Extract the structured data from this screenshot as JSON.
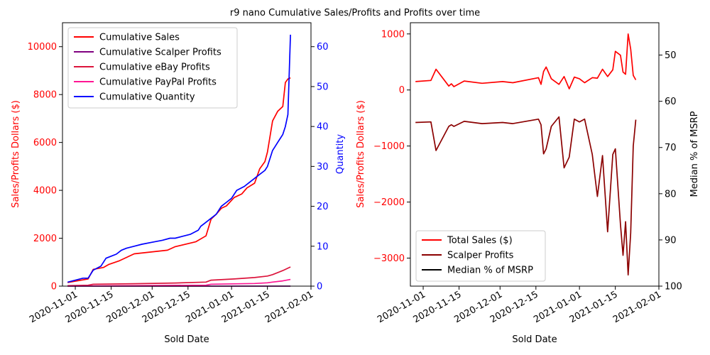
{
  "title": "r9 nano Cumulative Sales/Profits and Profits over time",
  "colors": {
    "sales": "#ff0000",
    "scalper": "#800080",
    "ebay": "#dc143c",
    "paypal": "#ff1493",
    "quantity": "#0000ff",
    "total_sales": "#ff0000",
    "scalper_profits": "#8b0000",
    "median_msrp": "#000000"
  },
  "chart_data": [
    {
      "type": "line",
      "xlabel": "Sold Date",
      "ylabel": "Sales/Profits Dollars ($)",
      "y2label": "Quantity",
      "x_ticks": [
        "2020-11-01",
        "2020-11-15",
        "2020-12-01",
        "2020-12-15",
        "2021-01-01",
        "2021-01-15",
        "2021-02-01"
      ],
      "xlim": [
        "2020-10-27",
        "2021-02-01"
      ],
      "ylim": [
        0,
        11000
      ],
      "y_ticks": [
        0,
        2000,
        4000,
        6000,
        8000,
        10000
      ],
      "y2lim": [
        0,
        66
      ],
      "y2_ticks": [
        0,
        10,
        20,
        30,
        40,
        50,
        60
      ],
      "legend_position": "top-left",
      "series": [
        {
          "name": "Cumulative Sales",
          "axis": "left",
          "color_key": "sales",
          "x": [
            "2020-10-29",
            "2020-11-06",
            "2020-11-08",
            "2020-11-12",
            "2020-11-14",
            "2020-11-18",
            "2020-11-24",
            "2020-12-07",
            "2020-12-10",
            "2020-12-18",
            "2020-12-22",
            "2020-12-24",
            "2020-12-26",
            "2020-12-28",
            "2020-12-30",
            "2021-01-02",
            "2021-01-05",
            "2021-01-07",
            "2021-01-10",
            "2021-01-12",
            "2021-01-14",
            "2021-01-15",
            "2021-01-17",
            "2021-01-19",
            "2021-01-21",
            "2021-01-22",
            "2021-01-23",
            "2021-01-24"
          ],
          "y": [
            150,
            300,
            700,
            780,
            900,
            1050,
            1350,
            1500,
            1650,
            1850,
            2100,
            2800,
            3000,
            3250,
            3350,
            3700,
            3850,
            4100,
            4300,
            4900,
            5200,
            5600,
            6900,
            7300,
            7500,
            8500,
            8650,
            8700
          ]
        },
        {
          "name": "Cumulative Scalper Profits",
          "axis": "left",
          "color_key": "scalper",
          "x": [
            "2020-10-29",
            "2021-01-24"
          ],
          "y": [
            0,
            0
          ]
        },
        {
          "name": "Cumulative eBay Profits",
          "axis": "left",
          "color_key": "ebay",
          "x": [
            "2020-10-29",
            "2020-11-06",
            "2020-11-08",
            "2020-11-24",
            "2020-12-10",
            "2020-12-22",
            "2020-12-24",
            "2021-01-02",
            "2021-01-10",
            "2021-01-15",
            "2021-01-17",
            "2021-01-21",
            "2021-01-24"
          ],
          "y": [
            20,
            40,
            80,
            100,
            130,
            170,
            250,
            300,
            360,
            420,
            480,
            650,
            800
          ]
        },
        {
          "name": "Cumulative PayPal Profits",
          "axis": "left",
          "color_key": "paypal",
          "x": [
            "2020-10-29",
            "2020-11-24",
            "2020-12-22",
            "2020-12-24",
            "2021-01-10",
            "2021-01-15",
            "2021-01-17",
            "2021-01-21",
            "2021-01-24"
          ],
          "y": [
            5,
            20,
            40,
            80,
            110,
            140,
            170,
            220,
            280
          ]
        },
        {
          "name": "Cumulative Quantity",
          "axis": "right",
          "color_key": "quantity",
          "x": [
            "2020-10-29",
            "2020-11-04",
            "2020-11-06",
            "2020-11-08",
            "2020-11-11",
            "2020-11-13",
            "2020-11-15",
            "2020-11-17",
            "2020-11-19",
            "2020-11-21",
            "2020-11-24",
            "2020-11-27",
            "2020-12-01",
            "2020-12-05",
            "2020-12-08",
            "2020-12-10",
            "2020-12-13",
            "2020-12-16",
            "2020-12-19",
            "2020-12-20",
            "2020-12-22",
            "2020-12-24",
            "2020-12-26",
            "2020-12-28",
            "2020-12-30",
            "2021-01-01",
            "2021-01-03",
            "2021-01-06",
            "2021-01-08",
            "2021-01-10",
            "2021-01-12",
            "2021-01-14",
            "2021-01-15",
            "2021-01-16",
            "2021-01-17",
            "2021-01-18",
            "2021-01-19",
            "2021-01-20",
            "2021-01-21",
            "2021-01-22",
            "2021-01-23",
            "2021-01-24"
          ],
          "y": [
            1,
            2,
            2,
            4,
            5,
            7,
            7.5,
            8,
            9,
            9.5,
            10,
            10.5,
            11,
            11.5,
            12,
            12,
            12.5,
            13,
            14,
            15,
            16,
            17,
            18,
            20,
            21,
            22,
            24,
            25,
            26,
            27,
            28,
            29,
            30,
            32,
            34,
            35,
            36,
            37,
            38,
            40,
            43,
            63
          ]
        }
      ]
    },
    {
      "type": "line",
      "xlabel": "Sold Date",
      "ylabel": "Sales/Profits Dollars ($)",
      "y2label": "Median % of MSRP",
      "x_ticks": [
        "2020-11-01",
        "2020-11-15",
        "2020-12-01",
        "2020-12-15",
        "2021-01-01",
        "2021-01-15",
        "2021-02-01"
      ],
      "xlim": [
        "2020-10-27",
        "2021-02-01"
      ],
      "ylim": [
        -3500,
        1200
      ],
      "y_ticks": [
        -3000,
        -2000,
        -1000,
        0,
        1000
      ],
      "y2lim_inverted": [
        100,
        43
      ],
      "y2_ticks": [
        50,
        60,
        70,
        80,
        90,
        100
      ],
      "legend_position": "bottom-left",
      "series": [
        {
          "name": "Total Sales ($)",
          "axis": "left",
          "color_key": "total_sales",
          "x": [
            "2020-10-29",
            "2020-11-04",
            "2020-11-06",
            "2020-11-11",
            "2020-11-12",
            "2020-11-13",
            "2020-11-17",
            "2020-11-24",
            "2020-12-02",
            "2020-12-06",
            "2020-12-16",
            "2020-12-17",
            "2020-12-18",
            "2020-12-19",
            "2020-12-21",
            "2020-12-24",
            "2020-12-26",
            "2020-12-28",
            "2020-12-30",
            "2021-01-01",
            "2021-01-03",
            "2021-01-06",
            "2021-01-08",
            "2021-01-10",
            "2021-01-12",
            "2021-01-14",
            "2021-01-15",
            "2021-01-17",
            "2021-01-18",
            "2021-01-19",
            "2021-01-20",
            "2021-01-21",
            "2021-01-22",
            "2021-01-23"
          ],
          "y": [
            150,
            170,
            370,
            70,
            110,
            60,
            160,
            120,
            150,
            130,
            220,
            100,
            330,
            410,
            200,
            100,
            240,
            20,
            230,
            200,
            130,
            220,
            210,
            370,
            240,
            360,
            690,
            620,
            320,
            280,
            1000,
            730,
            260,
            180
          ]
        },
        {
          "name": "Scalper Profits",
          "axis": "left",
          "color_key": "scalper_profits",
          "x": [
            "2020-10-29",
            "2020-11-04",
            "2020-11-06",
            "2020-11-11",
            "2020-11-12",
            "2020-11-13",
            "2020-11-17",
            "2020-11-24",
            "2020-12-02",
            "2020-12-06",
            "2020-12-16",
            "2020-12-17",
            "2020-12-18",
            "2020-12-19",
            "2020-12-21",
            "2020-12-24",
            "2020-12-26",
            "2020-12-28",
            "2020-12-30",
            "2021-01-01",
            "2021-01-03",
            "2021-01-06",
            "2021-01-08",
            "2021-01-10",
            "2021-01-12",
            "2021-01-14",
            "2021-01-15",
            "2021-01-17",
            "2021-01-18",
            "2021-01-19",
            "2021-01-20",
            "2021-01-21",
            "2021-01-22",
            "2021-01-23"
          ],
          "y": [
            -580,
            -570,
            -1080,
            -650,
            -620,
            -650,
            -560,
            -600,
            -580,
            -600,
            -520,
            -620,
            -1140,
            -1050,
            -650,
            -480,
            -1390,
            -1200,
            -520,
            -570,
            -520,
            -1150,
            -1900,
            -1170,
            -2530,
            -1150,
            -1050,
            -2400,
            -2950,
            -2350,
            -3300,
            -2550,
            -1000,
            -530
          ]
        },
        {
          "name": "Median % of MSRP",
          "axis": "right",
          "color_key": "median_msrp",
          "x": [],
          "y": []
        }
      ]
    }
  ]
}
